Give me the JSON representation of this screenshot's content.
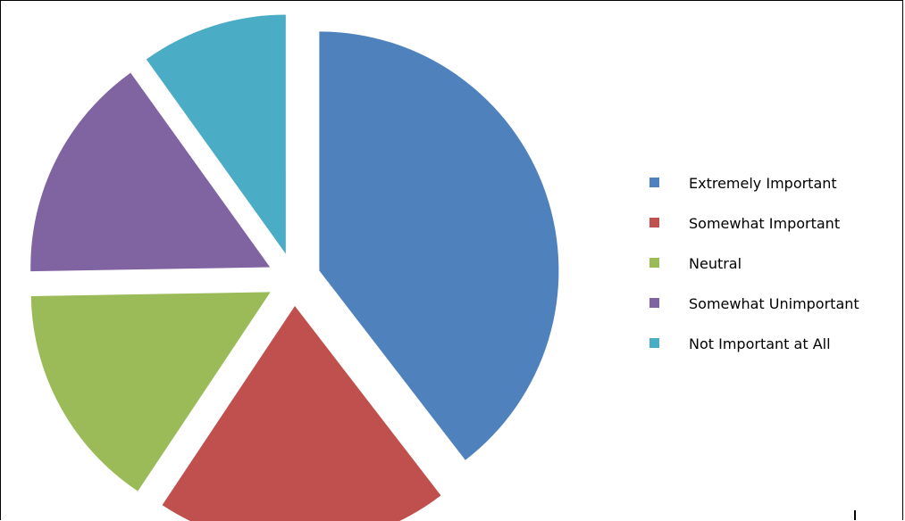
{
  "chart_data": {
    "type": "pie",
    "title": "",
    "exploded": true,
    "legend_position": "right",
    "start_angle": "12 o'clock, clockwise",
    "slices": [
      {
        "label": "Extremely Important",
        "value": 36,
        "color": "#4F81BD"
      },
      {
        "label": "Somewhat Important",
        "value": 18,
        "color": "#C0504D"
      },
      {
        "label": "Neutral",
        "value": 14,
        "color": "#9BBB59"
      },
      {
        "label": "Somewhat Unimportant",
        "value": 14,
        "color": "#8064A2"
      },
      {
        "label": "Not Important at All",
        "value": 9,
        "color": "#4BACC6"
      }
    ]
  }
}
